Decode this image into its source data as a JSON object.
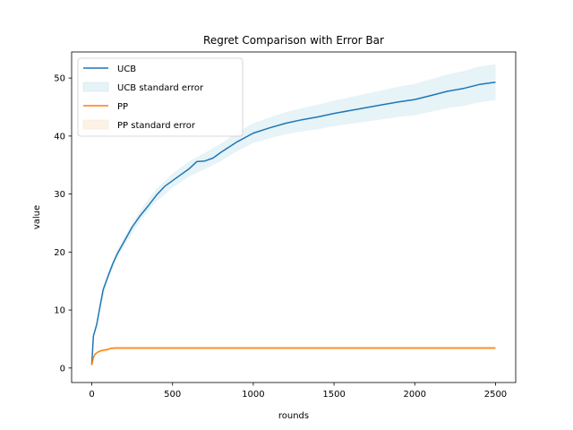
{
  "chart_data": {
    "type": "line",
    "title": "Regret Comparison with Error Bar",
    "xlabel": "rounds",
    "ylabel": "value",
    "xlim": [
      -125,
      2625
    ],
    "ylim": [
      -2.5,
      54.5
    ],
    "x_ticks": [
      0,
      500,
      1000,
      1500,
      2000,
      2500
    ],
    "y_ticks": [
      0,
      10,
      20,
      30,
      40,
      50
    ],
    "legend_position": "top-left",
    "series": [
      {
        "name": "UCB",
        "color": "#1f77b4",
        "points": [
          [
            0,
            0.6
          ],
          [
            10,
            5.5
          ],
          [
            30,
            7.5
          ],
          [
            50,
            10.5
          ],
          [
            70,
            13.5
          ],
          [
            100,
            15.8
          ],
          [
            130,
            18.0
          ],
          [
            160,
            19.8
          ],
          [
            200,
            21.8
          ],
          [
            250,
            24.3
          ],
          [
            300,
            26.3
          ],
          [
            350,
            28.0
          ],
          [
            400,
            29.8
          ],
          [
            450,
            31.3
          ],
          [
            500,
            32.3
          ],
          [
            550,
            33.3
          ],
          [
            600,
            34.3
          ],
          [
            650,
            35.6
          ],
          [
            700,
            35.7
          ],
          [
            750,
            36.2
          ],
          [
            800,
            37.2
          ],
          [
            900,
            39.0
          ],
          [
            1000,
            40.5
          ],
          [
            1100,
            41.4
          ],
          [
            1200,
            42.2
          ],
          [
            1300,
            42.8
          ],
          [
            1400,
            43.3
          ],
          [
            1500,
            43.9
          ],
          [
            1600,
            44.4
          ],
          [
            1700,
            44.9
          ],
          [
            1800,
            45.4
          ],
          [
            1900,
            45.9
          ],
          [
            2000,
            46.3
          ],
          [
            2100,
            47.0
          ],
          [
            2200,
            47.7
          ],
          [
            2300,
            48.2
          ],
          [
            2400,
            48.9
          ],
          [
            2500,
            49.3
          ]
        ]
      },
      {
        "name": "UCB standard error",
        "color": "#add8e6",
        "band": [
          [
            0,
            0.3,
            0.9
          ],
          [
            10,
            5.0,
            6.0
          ],
          [
            30,
            7.0,
            8.0
          ],
          [
            50,
            10.0,
            11.0
          ],
          [
            100,
            15.2,
            16.4
          ],
          [
            160,
            19.1,
            20.5
          ],
          [
            200,
            21.0,
            22.6
          ],
          [
            300,
            25.4,
            27.2
          ],
          [
            400,
            28.7,
            30.9
          ],
          [
            500,
            31.1,
            33.5
          ],
          [
            600,
            33.0,
            35.6
          ],
          [
            700,
            34.3,
            37.1
          ],
          [
            800,
            35.7,
            38.7
          ],
          [
            900,
            37.4,
            40.6
          ],
          [
            1000,
            38.8,
            42.2
          ],
          [
            1100,
            39.6,
            43.2
          ],
          [
            1200,
            40.3,
            44.1
          ],
          [
            1300,
            40.8,
            44.8
          ],
          [
            1400,
            41.2,
            45.4
          ],
          [
            1500,
            41.7,
            46.1
          ],
          [
            1600,
            42.1,
            46.7
          ],
          [
            1700,
            42.5,
            47.3
          ],
          [
            1800,
            42.9,
            47.9
          ],
          [
            1900,
            43.3,
            48.5
          ],
          [
            2000,
            43.6,
            49.0
          ],
          [
            2100,
            44.2,
            49.8
          ],
          [
            2200,
            44.8,
            50.6
          ],
          [
            2300,
            45.2,
            51.2
          ],
          [
            2400,
            45.8,
            52.0
          ],
          [
            2500,
            46.2,
            52.4
          ]
        ]
      },
      {
        "name": "PP",
        "color": "#ff7f0e",
        "points": [
          [
            0,
            0.5
          ],
          [
            10,
            1.8
          ],
          [
            20,
            2.4
          ],
          [
            40,
            2.8
          ],
          [
            60,
            3.0
          ],
          [
            80,
            3.1
          ],
          [
            100,
            3.2
          ],
          [
            120,
            3.4
          ],
          [
            150,
            3.45
          ],
          [
            2500,
            3.45
          ]
        ]
      },
      {
        "name": "PP standard error",
        "color": "#fbe8d2",
        "band": [
          [
            0,
            0.3,
            0.7
          ],
          [
            10,
            1.5,
            2.1
          ],
          [
            20,
            2.1,
            2.7
          ],
          [
            40,
            2.5,
            3.1
          ],
          [
            80,
            2.8,
            3.4
          ],
          [
            120,
            3.1,
            3.7
          ],
          [
            150,
            3.15,
            3.75
          ],
          [
            2500,
            3.15,
            3.75
          ]
        ]
      }
    ]
  }
}
